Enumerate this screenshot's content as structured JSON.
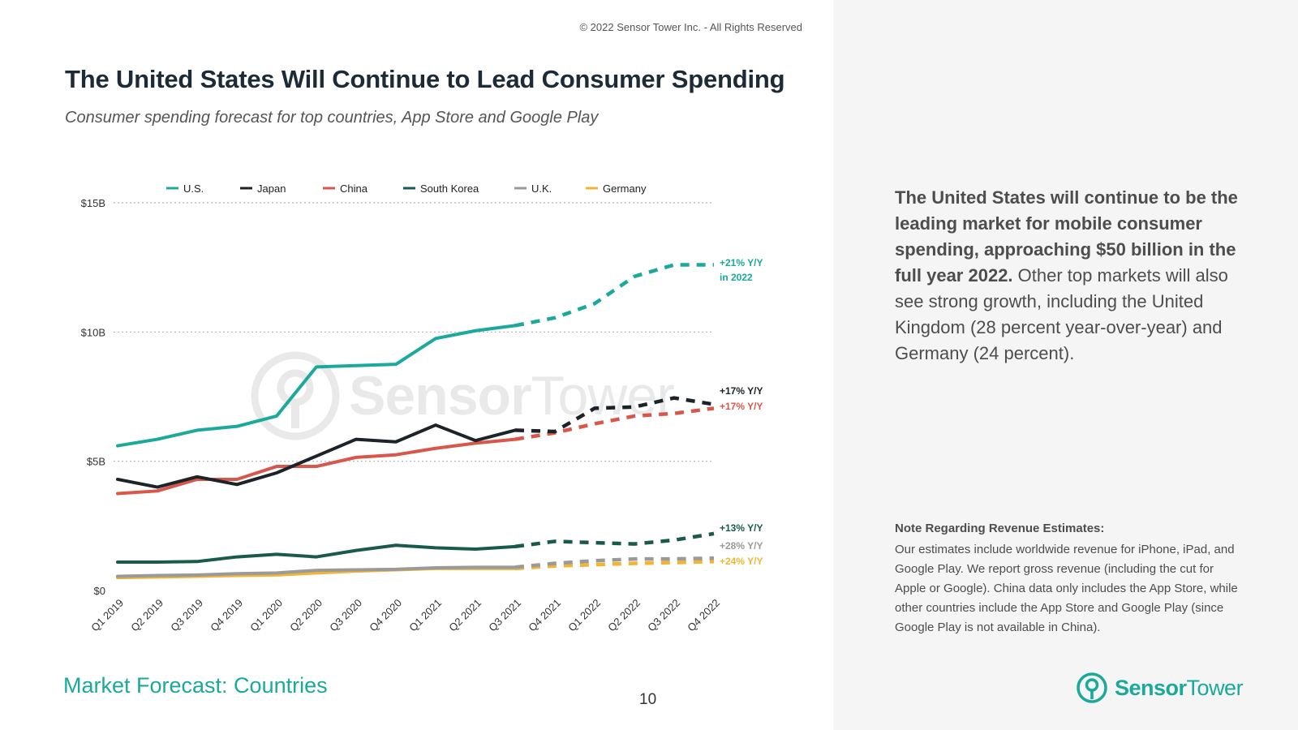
{
  "header": {
    "title": "The United States Will Continue to Lead Consumer Spending",
    "subtitle": "Consumer spending forecast for top countries, App Store and Google Play",
    "copyright": "© 2022 Sensor Tower Inc. - All Rights Reserved"
  },
  "footer": {
    "section_label": "Market Forecast: Countries",
    "page_number": "10"
  },
  "summary": {
    "bold_text": "The United States will continue to be the leading market for mobile consumer spending, approaching $50 billion in the full year 2022.",
    "rest_text": " Other top markets will also see strong growth, including the United Kingdom (28 percent year-over-year) and Germany (24 percent)."
  },
  "note": {
    "title": "Note Regarding Revenue Estimates:",
    "body": "Our estimates include worldwide revenue for iPhone, iPad, and Google Play. We report gross revenue (including the cut for Apple or Google). China data only includes the App Store, while other countries include the App Store and Google Play (since Google Play is not available in China)."
  },
  "logo": {
    "part1": "Sensor",
    "part2": "Tower"
  },
  "watermark": {
    "part1": "Sensor",
    "part2": "Tower"
  },
  "colors": {
    "accent": "#1aa99a",
    "us": "#1aa99a",
    "japan": "#1c2329",
    "china": "#d9574a",
    "south_korea": "#1a5a4c",
    "uk": "#9a9a9a",
    "germany": "#f2b533"
  },
  "chart_data": {
    "type": "line",
    "title": "",
    "xlabel": "",
    "ylabel": "",
    "ylim": [
      0,
      15
    ],
    "y_ticks": [
      0,
      5,
      10,
      15
    ],
    "y_tick_labels": [
      "$0",
      "$5B",
      "$10B",
      "$15B"
    ],
    "grid": true,
    "legend_position": "top",
    "categories": [
      "Q1 2019",
      "Q2 2019",
      "Q3 2019",
      "Q4 2019",
      "Q1 2020",
      "Q2 2020",
      "Q3 2020",
      "Q4 2020",
      "Q1 2021",
      "Q2 2021",
      "Q3 2021",
      "Q4 2021",
      "Q1 2022",
      "Q2 2022",
      "Q3 2022",
      "Q4 2022"
    ],
    "forecast_start_index": 10,
    "series": [
      {
        "name": "U.S.",
        "color": "#1aa99a",
        "values": [
          5.6,
          5.85,
          6.2,
          6.35,
          6.75,
          8.65,
          8.7,
          8.75,
          9.75,
          10.05,
          10.25,
          10.55,
          11.1,
          12.15,
          12.6,
          12.6
        ],
        "annotation": [
          "+21% Y/Y",
          "in 2022"
        ]
      },
      {
        "name": "Japan",
        "color": "#1c2329",
        "values": [
          4.3,
          4.0,
          4.4,
          4.1,
          4.55,
          5.2,
          5.85,
          5.75,
          6.4,
          5.8,
          6.2,
          6.15,
          7.05,
          7.1,
          7.45,
          7.2
        ],
        "annotation": [
          "+17% Y/Y"
        ]
      },
      {
        "name": "China",
        "color": "#d9574a",
        "values": [
          3.75,
          3.85,
          4.3,
          4.3,
          4.8,
          4.8,
          5.15,
          5.25,
          5.5,
          5.7,
          5.85,
          6.1,
          6.45,
          6.75,
          6.85,
          7.05
        ],
        "annotation": [
          "+17% Y/Y"
        ]
      },
      {
        "name": "South Korea",
        "color": "#1a5a4c",
        "values": [
          1.1,
          1.1,
          1.12,
          1.3,
          1.4,
          1.3,
          1.55,
          1.75,
          1.65,
          1.6,
          1.7,
          1.9,
          1.85,
          1.8,
          1.95,
          2.2
        ],
        "annotation": [
          "+13% Y/Y"
        ]
      },
      {
        "name": "U.K.",
        "color": "#9a9a9a",
        "values": [
          0.55,
          0.58,
          0.6,
          0.65,
          0.68,
          0.78,
          0.8,
          0.82,
          0.88,
          0.9,
          0.9,
          1.05,
          1.15,
          1.22,
          1.22,
          1.25
        ],
        "annotation": [
          "+28% Y/Y"
        ]
      },
      {
        "name": "Germany",
        "color": "#f2b533",
        "values": [
          0.5,
          0.52,
          0.55,
          0.58,
          0.6,
          0.68,
          0.75,
          0.8,
          0.85,
          0.85,
          0.85,
          0.95,
          1.0,
          1.05,
          1.08,
          1.12
        ],
        "annotation": [
          "+24% Y/Y"
        ]
      }
    ]
  }
}
